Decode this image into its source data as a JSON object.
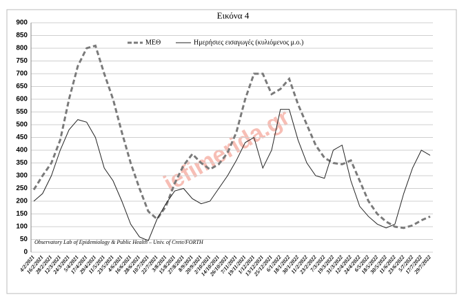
{
  "chart_data": {
    "type": "line",
    "title": "Εικόνα 4",
    "categories": [
      "4/2/2021",
      "16/2/2021",
      "28/2/2021",
      "12/3/2021",
      "24/3/2021",
      "5/4/2021",
      "17/4/2021",
      "29/4/2021",
      "11/5/2021",
      "23/5/2021",
      "4/6/2021",
      "16/6/2021",
      "28/6/2021",
      "10/7/2021",
      "22/7/2021",
      "3/8/2021",
      "15/8/2021",
      "27/8/2021",
      "8/9/2021",
      "20/9/2021",
      "2/10/2021",
      "14/10/2021",
      "26/10/2021",
      "7/11/2021",
      "19/11/2021",
      "1/12/2021",
      "13/12/2021",
      "25/12/2021",
      "6/1/2022",
      "18/1/2022",
      "30/1/2022",
      "11/2/2022",
      "23/2/2022",
      "7/3/2022",
      "19/3/2022",
      "31/3/2022",
      "12/4/2022",
      "24/4/2022",
      "6/5/2022",
      "18/5/2022",
      "30/5/2022",
      "11/6/2022",
      "23/6/2022",
      "5/7/2022",
      "17/7/2022",
      "29/7/2022"
    ],
    "series": [
      {
        "name": "ΜΕΘ",
        "color": "#7a7a7a",
        "dashed": true,
        "values": [
          245,
          300,
          350,
          440,
          600,
          730,
          800,
          810,
          700,
          600,
          470,
          350,
          250,
          160,
          130,
          180,
          270,
          340,
          385,
          350,
          325,
          345,
          390,
          470,
          600,
          700,
          700,
          620,
          640,
          680,
          580,
          500,
          420,
          370,
          350,
          345,
          360,
          280,
          200,
          150,
          120,
          100,
          95,
          105,
          125,
          140
        ]
      },
      {
        "name": "Ημερήσιες εισαγωγές (κυλιόμενος μ.ο.)",
        "color": "#222222",
        "dashed": false,
        "values": [
          200,
          230,
          300,
          400,
          480,
          520,
          510,
          450,
          330,
          280,
          200,
          110,
          60,
          45,
          130,
          190,
          240,
          250,
          210,
          190,
          200,
          250,
          300,
          360,
          430,
          450,
          330,
          400,
          560,
          560,
          440,
          350,
          300,
          290,
          400,
          420,
          280,
          180,
          140,
          110,
          95,
          110,
          230,
          330,
          400,
          380
        ]
      }
    ],
    "ylim": [
      0,
      900
    ],
    "yticks": [
      0,
      50,
      100,
      150,
      200,
      250,
      300,
      350,
      400,
      450,
      500,
      550,
      600,
      650,
      700,
      750,
      800,
      850,
      900
    ],
    "grid": true,
    "annotation": "Observatory Lab of Epidemiology & Public Health – Univ. of Crete/FORTH",
    "watermark": "iefimerida.gr"
  }
}
